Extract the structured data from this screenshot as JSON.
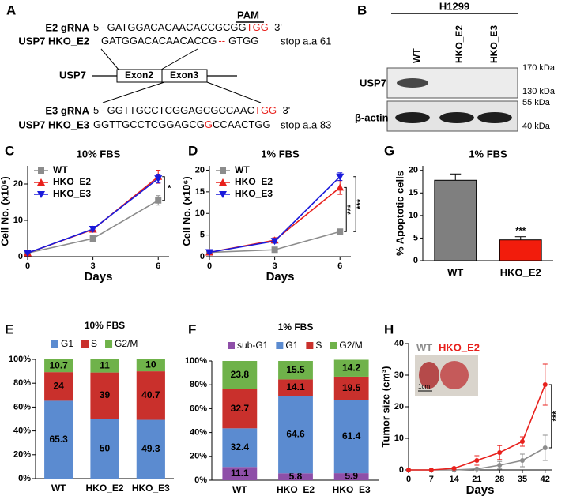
{
  "panel_labels": [
    "A",
    "B",
    "C",
    "D",
    "G",
    "E",
    "F",
    "H"
  ],
  "diagram": {
    "pam": "PAM",
    "e2_grna": {
      "label": "E2 gRNA",
      "seq": "5'- GATGGACACAACACCGCGG",
      "pam_seq": "TGG",
      "end": "-3'"
    },
    "e2_mutant": {
      "label": "USP7 HKO_E2",
      "seq": "GATGGACACAACACCG",
      "deletion": "--",
      "seq_end": "GTGG",
      "note": "stop a.a 61"
    },
    "gene": "USP7",
    "exons": [
      "Exon2",
      "Exon3"
    ],
    "e3_grna": {
      "label": "E3 gRNA",
      "seq": "5'- GGTTGCCTCGGAGCGCCAAC",
      "pam_seq": "TGG",
      "end": "-3'"
    },
    "e3_mutant": {
      "label": "USP7 HKO_E3",
      "seq": "GGTTGCCTCGGAGCG",
      "insertion": "G",
      "seq_end": "CCAACTGG",
      "note": "stop a.a 83"
    }
  },
  "blot": {
    "cell_line": "H1299",
    "lanes": [
      "WT",
      "HKO_E2",
      "HKO_E3"
    ],
    "rows": [
      "USP7",
      "β-actin"
    ],
    "markers": [
      "170 kDa",
      "130 kDa",
      "55 kDa",
      "40 kDa"
    ]
  },
  "chart_data": [
    {
      "type": "line",
      "title": "10% FBS",
      "x": [
        0,
        3,
        6
      ],
      "xlim": [
        0,
        6.5
      ],
      "xticks": [
        0,
        3,
        6
      ],
      "ylim": [
        0,
        25
      ],
      "yticks": [
        0,
        10,
        20
      ],
      "xlabel": "Days",
      "ylabel": "Cell No. (x10⁶)",
      "legend": "upper left",
      "series": [
        {
          "name": "WT",
          "color": "#8c8c8c",
          "marker": "square",
          "values": [
            1,
            5,
            15.5
          ],
          "errors": [
            0.2,
            0.4,
            1.3
          ]
        },
        {
          "name": "HKO_E2",
          "color": "#e8201c",
          "marker": "triangle-up",
          "values": [
            1,
            7.5,
            22
          ],
          "errors": [
            0.2,
            0.6,
            1.8
          ]
        },
        {
          "name": "HKO_E3",
          "color": "#1a1adb",
          "marker": "triangle-down",
          "values": [
            1,
            7.6,
            21.5
          ],
          "errors": [
            0.2,
            0.6,
            1.2
          ]
        }
      ],
      "annotations": [
        "*"
      ]
    },
    {
      "type": "line",
      "title": "1% FBS",
      "x": [
        0,
        3,
        6
      ],
      "xlim": [
        0,
        6.5
      ],
      "xticks": [
        0,
        3,
        6
      ],
      "ylim": [
        0,
        21
      ],
      "yticks": [
        0,
        5,
        10,
        15,
        20
      ],
      "xlabel": "Days",
      "ylabel": "Cell No. (x10⁶)",
      "legend": "upper left",
      "series": [
        {
          "name": "WT",
          "color": "#8c8c8c",
          "marker": "square",
          "values": [
            1,
            1.6,
            5.8
          ],
          "errors": [
            0.2,
            0.3,
            0.5
          ]
        },
        {
          "name": "HKO_E2",
          "color": "#e8201c",
          "marker": "triangle-up",
          "values": [
            1,
            3.8,
            16
          ],
          "errors": [
            0.2,
            0.6,
            1.6
          ]
        },
        {
          "name": "HKO_E3",
          "color": "#1a1adb",
          "marker": "triangle-down",
          "values": [
            1,
            3.6,
            18.5
          ],
          "errors": [
            0.2,
            0.5,
            0.9
          ]
        }
      ],
      "annotations": [
        "***",
        "***"
      ]
    },
    {
      "type": "bar",
      "title": "1% FBS",
      "categories": [
        "WT",
        "HKO_E2"
      ],
      "values": [
        17.8,
        4.6
      ],
      "errors": [
        1.4,
        0.7
      ],
      "colors": [
        "#7f7f7f",
        "#f21c0c"
      ],
      "ylim": [
        0,
        21
      ],
      "yticks": [
        0,
        5,
        10,
        15,
        20
      ],
      "ylabel": "% Apoptotic cells",
      "annotations": [
        "***"
      ]
    },
    {
      "type": "stacked",
      "title": "10% FBS",
      "categories": [
        "WT",
        "HKO_E2",
        "HKO_E3"
      ],
      "ylim": [
        0,
        100
      ],
      "yticks": [
        {
          "value": 0,
          "label": "0%"
        },
        {
          "value": 20,
          "label": "20%"
        },
        {
          "value": 40,
          "label": "40%"
        },
        {
          "value": 60,
          "label": "60%"
        },
        {
          "value": 80,
          "label": "80%"
        },
        {
          "value": 100,
          "label": "100%"
        }
      ],
      "series": [
        {
          "name": "G1",
          "color": "#5b8bd0",
          "values": [
            65.3,
            50,
            49.3
          ]
        },
        {
          "name": "S",
          "color": "#c9302c",
          "values": [
            24,
            39,
            40.7
          ]
        },
        {
          "name": "G2/M",
          "color": "#6fb24a",
          "values": [
            10.7,
            11,
            10
          ]
        }
      ]
    },
    {
      "type": "stacked",
      "title": "1% FBS",
      "categories": [
        "WT",
        "HKO_E2",
        "HKO_E3"
      ],
      "ylim": [
        0,
        100
      ],
      "yticks": [
        {
          "value": 0,
          "label": "0%"
        },
        {
          "value": 20,
          "label": "20%"
        },
        {
          "value": 40,
          "label": "40%"
        },
        {
          "value": 60,
          "label": "60%"
        },
        {
          "value": 80,
          "label": "80%"
        },
        {
          "value": 100,
          "label": "100%"
        }
      ],
      "series": [
        {
          "name": "sub-G1",
          "color": "#8e4fa8",
          "values": [
            11.1,
            5.8,
            5.9
          ]
        },
        {
          "name": "G1",
          "color": "#5b8bd0",
          "values": [
            32.4,
            64.6,
            61.4
          ]
        },
        {
          "name": "S",
          "color": "#c9302c",
          "values": [
            32.7,
            14.1,
            19.5
          ]
        },
        {
          "name": "G2/M",
          "color": "#6fb24a",
          "values": [
            23.8,
            15.5,
            14.2
          ]
        }
      ]
    },
    {
      "type": "line",
      "x": [
        0,
        7,
        14,
        21,
        28,
        35,
        42
      ],
      "xlim": [
        0,
        44
      ],
      "xticks": [
        0,
        7,
        14,
        21,
        28,
        35,
        42
      ],
      "ylim": [
        0,
        40
      ],
      "yticks": [
        0,
        10,
        20,
        30,
        40
      ],
      "xlabel": "Days",
      "ylabel": "Tumor size (cm³)",
      "legend": "upper left",
      "legend_layout": "horizontal",
      "photo_scale_label": "1cm",
      "series": [
        {
          "name": "WT",
          "color": "#8c8c8c",
          "marker": "circle",
          "values": [
            0,
            0,
            0,
            0.3,
            1.5,
            3,
            7
          ],
          "errors": [
            0,
            0,
            0,
            0.3,
            1.2,
            2,
            4
          ]
        },
        {
          "name": "HKO_E2",
          "color": "#e8201c",
          "marker": "circle",
          "values": [
            0,
            0,
            0.5,
            3,
            5.5,
            9,
            27
          ],
          "errors": [
            0,
            0,
            0.3,
            1.5,
            2.2,
            1.5,
            6.5
          ]
        }
      ],
      "annotations": [
        "***"
      ]
    }
  ]
}
